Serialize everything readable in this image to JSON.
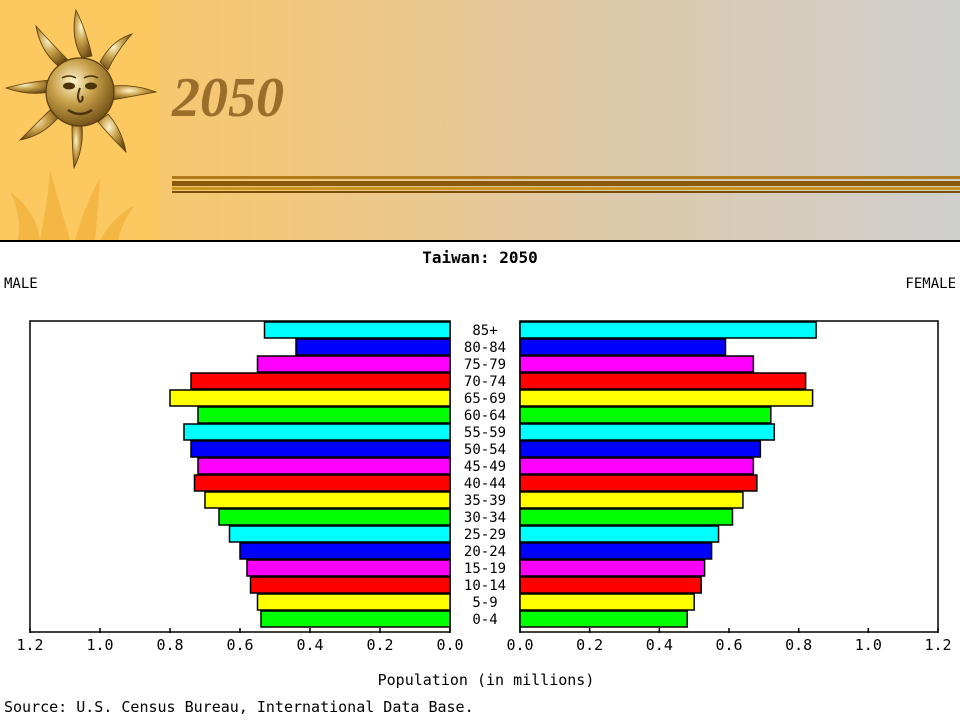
{
  "slide": {
    "title": "2050",
    "sun_icon": "sun-face-icon"
  },
  "chart_data": {
    "type": "bar",
    "title": "Taiwan: 2050",
    "left_label": "MALE",
    "right_label": "FEMALE",
    "xlabel": "Population (in millions)",
    "source": "Source: U.S. Census Bureau, International Data Base.",
    "xlim": [
      0,
      1.2
    ],
    "ticks": [
      1.2,
      1.0,
      0.8,
      0.6,
      0.4,
      0.2,
      0.0
    ],
    "tick_labels": [
      "1.2",
      "1.0",
      "0.8",
      "0.6",
      "0.4",
      "0.2",
      "0.0"
    ],
    "categories": [
      "85+",
      "80-84",
      "75-79",
      "70-74",
      "65-69",
      "60-64",
      "55-59",
      "50-54",
      "45-49",
      "40-44",
      "35-39",
      "30-34",
      "25-29",
      "20-24",
      "15-19",
      "10-14",
      "5-9",
      "0-4"
    ],
    "colors": [
      "#00ffff",
      "#0000ff",
      "#ff00ff",
      "#ff0000",
      "#ffff00",
      "#00ff00",
      "#00ffff",
      "#0000ff",
      "#ff00ff",
      "#ff0000",
      "#ffff00",
      "#00ff00",
      "#00ffff",
      "#0000ff",
      "#ff00ff",
      "#ff0000",
      "#ffff00",
      "#00ff00"
    ],
    "series": [
      {
        "name": "MALE",
        "values": [
          0.53,
          0.44,
          0.55,
          0.74,
          0.8,
          0.72,
          0.76,
          0.74,
          0.72,
          0.73,
          0.7,
          0.66,
          0.63,
          0.6,
          0.58,
          0.57,
          0.55,
          0.54
        ]
      },
      {
        "name": "FEMALE",
        "values": [
          0.85,
          0.59,
          0.67,
          0.82,
          0.84,
          0.72,
          0.73,
          0.69,
          0.67,
          0.68,
          0.64,
          0.61,
          0.57,
          0.55,
          0.53,
          0.52,
          0.5,
          0.48
        ]
      }
    ]
  }
}
